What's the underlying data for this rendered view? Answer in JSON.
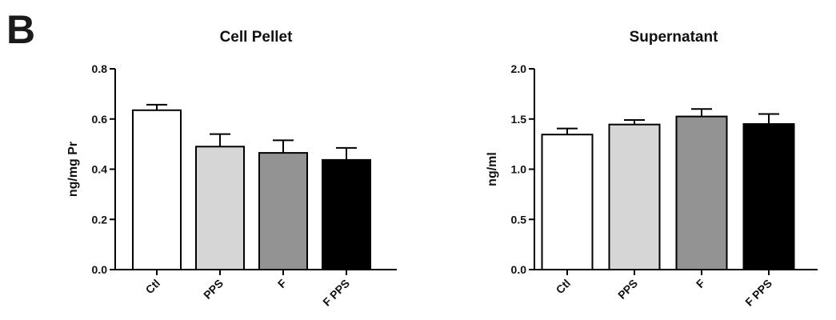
{
  "panel_label": "B",
  "chart_data": [
    {
      "type": "bar",
      "title": "Cell Pellet",
      "xlabel": "",
      "ylabel": "ng/mg Pr",
      "ylim": [
        0,
        0.8
      ],
      "yticks": [
        0.0,
        0.2,
        0.4,
        0.6,
        0.8
      ],
      "ytick_labels": [
        "0.0",
        "0.2",
        "0.4",
        "0.6",
        "0.8"
      ],
      "categories": [
        "Ctl",
        "PPS",
        "F",
        "F PPS"
      ],
      "values": [
        0.635,
        0.49,
        0.465,
        0.437
      ],
      "errors": [
        0.022,
        0.05,
        0.05,
        0.048
      ],
      "colors": [
        "#ffffff",
        "#d6d6d6",
        "#939393",
        "#000000"
      ]
    },
    {
      "type": "bar",
      "title": "Supernatant",
      "xlabel": "",
      "ylabel": "ng/ml",
      "ylim": [
        0,
        2.0
      ],
      "yticks": [
        0.0,
        0.5,
        1.0,
        1.5,
        2.0
      ],
      "ytick_labels": [
        "0.0",
        "0.5",
        "1.0",
        "1.5",
        "2.0"
      ],
      "categories": [
        "Ctl",
        "PPS",
        "F",
        "F PPS"
      ],
      "values": [
        1.345,
        1.445,
        1.525,
        1.45
      ],
      "errors": [
        0.06,
        0.045,
        0.075,
        0.1
      ],
      "colors": [
        "#ffffff",
        "#d6d6d6",
        "#939393",
        "#000000"
      ]
    }
  ]
}
